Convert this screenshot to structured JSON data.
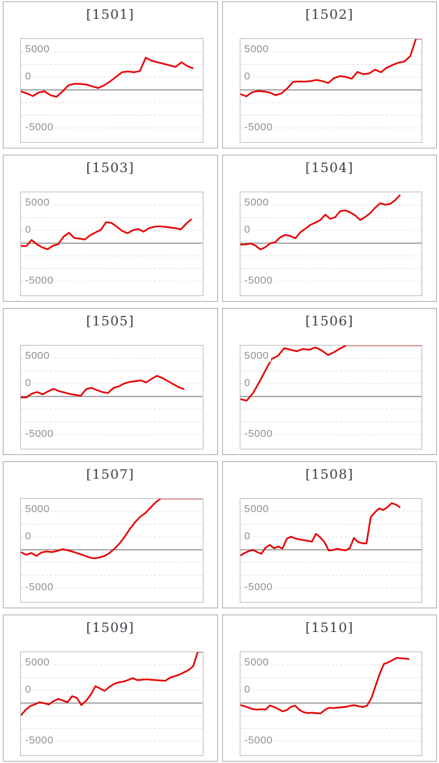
{
  "axis": {
    "y_tick_labels": [
      "5000",
      "0",
      "-5000"
    ],
    "y_tick_values": [
      5000,
      0,
      -5000
    ],
    "y_visible_range": [
      -6640,
      6640
    ],
    "gridline_interval": 1660,
    "grid": "dashed-horizontal",
    "zero_line": "solid"
  },
  "style_colors": {
    "line": "#e60000",
    "grid_dashed": "#dcdcdc",
    "zero_line": "#8f8f8f",
    "tick_label": "#8e8e96",
    "title": "#3d3d46",
    "cell_border": "#a7a7a7",
    "plot_border": "#bcbcbc",
    "background": "#ffffff"
  },
  "chart_data": [
    {
      "type": "line",
      "title": "[1501]",
      "ylim": [
        -6640,
        6640
      ],
      "legend": "none",
      "x_end_fraction": 0.95,
      "series": [
        {
          "name": "cumulative-payout",
          "values": [
            -200,
            -450,
            -800,
            -350,
            -200,
            -700,
            -900,
            -200,
            600,
            800,
            780,
            700,
            450,
            250,
            600,
            1100,
            1700,
            2300,
            2400,
            2300,
            2450,
            4200,
            3800,
            3600,
            3400,
            3200,
            3000,
            3600,
            3100,
            2800
          ]
        }
      ]
    },
    {
      "type": "line",
      "title": "[1502]",
      "ylim": [
        -6640,
        6640
      ],
      "legend": "none",
      "x_end_fraction": 1.0,
      "series": [
        {
          "name": "cumulative-payout",
          "values": [
            -550,
            -850,
            -300,
            -150,
            -200,
            -350,
            -700,
            -450,
            200,
            1050,
            1100,
            1080,
            1150,
            1300,
            1150,
            900,
            1550,
            1800,
            1700,
            1450,
            2350,
            2050,
            2150,
            2650,
            2300,
            2900,
            3250,
            3550,
            3700,
            4400,
            6700,
            6700
          ]
        }
      ]
    },
    {
      "type": "line",
      "title": "[1503]",
      "ylim": [
        -6640,
        6640
      ],
      "legend": "none",
      "x_end_fraction": 0.94,
      "series": [
        {
          "name": "cumulative-payout",
          "values": [
            -350,
            -380,
            420,
            -150,
            -550,
            -800,
            -350,
            -120,
            850,
            1350,
            700,
            580,
            480,
            1050,
            1400,
            1750,
            2750,
            2650,
            2150,
            1600,
            1300,
            1700,
            1850,
            1500,
            1950,
            2150,
            2200,
            2150,
            2050,
            1950,
            1800,
            2550,
            3150
          ]
        }
      ]
    },
    {
      "type": "line",
      "title": "[1504]",
      "ylim": [
        -6640,
        6640
      ],
      "legend": "none",
      "x_end_fraction": 0.88,
      "series": [
        {
          "name": "cumulative-payout",
          "values": [
            -180,
            -160,
            -40,
            -300,
            -820,
            -520,
            -20,
            140,
            780,
            1080,
            940,
            640,
            1420,
            1880,
            2380,
            2680,
            3020,
            3720,
            3180,
            3400,
            4180,
            4280,
            4020,
            3620,
            3020,
            3420,
            3920,
            4620,
            5220,
            5020,
            5120,
            5620,
            6300
          ]
        }
      ]
    },
    {
      "type": "line",
      "title": "[1505]",
      "ylim": [
        -6640,
        6640
      ],
      "legend": "none",
      "x_end_fraction": 0.9,
      "series": [
        {
          "name": "cumulative-payout",
          "values": [
            -120,
            -120,
            360,
            580,
            270,
            670,
            1000,
            700,
            515,
            330,
            210,
            90,
            970,
            1120,
            820,
            575,
            455,
            1120,
            1330,
            1700,
            1900,
            2000,
            2100,
            1850,
            2300,
            2700,
            2400,
            2000,
            1600,
            1200,
            950
          ]
        }
      ]
    },
    {
      "type": "line",
      "title": "[1506]",
      "ylim": [
        -6640,
        6640
      ],
      "legend": "none",
      "x_end_fraction": 1.0,
      "series": [
        {
          "name": "cumulative-payout",
          "values": [
            -350,
            -550,
            420,
            1850,
            3400,
            4900,
            5300,
            6300,
            6100,
            5900,
            6200,
            6100,
            6400,
            6000,
            5400,
            5800,
            6300,
            6700,
            6700,
            6700,
            6700,
            6700,
            6700,
            6700,
            6700,
            6700,
            6700,
            6700,
            6700,
            6700
          ]
        }
      ]
    },
    {
      "type": "line",
      "title": "[1507]",
      "ylim": [
        -6640,
        6640
      ],
      "legend": "none",
      "x_end_fraction": 1.0,
      "series": [
        {
          "name": "cumulative-payout",
          "values": [
            -300,
            -650,
            -420,
            -800,
            -350,
            -220,
            -300,
            -150,
            60,
            -60,
            -250,
            -480,
            -700,
            -950,
            -1120,
            -1020,
            -850,
            -450,
            100,
            800,
            1700,
            2700,
            3600,
            4300,
            4800,
            5500,
            6200,
            6700,
            6700,
            6700,
            6700,
            6700,
            6700,
            6700,
            6700,
            6700
          ]
        }
      ]
    },
    {
      "type": "line",
      "title": "[1508]",
      "ylim": [
        -6640,
        6640
      ],
      "legend": "none",
      "x_end_fraction": 0.88,
      "series": [
        {
          "name": "cumulative-payout",
          "values": [
            -750,
            -420,
            -160,
            -20,
            -300,
            -520,
            280,
            640,
            200,
            420,
            160,
            1400,
            1720,
            1480,
            1350,
            1260,
            1160,
            1060,
            2080,
            1600,
            1000,
            -80,
            -40,
            120,
            20,
            -80,
            200,
            1540,
            1000,
            860,
            820,
            4280,
            4880,
            5400,
            5180,
            5580,
            6080,
            5880,
            5520
          ]
        }
      ]
    },
    {
      "type": "line",
      "title": "[1509]",
      "ylim": [
        -6640,
        6640
      ],
      "legend": "none",
      "x_end_fraction": 1.0,
      "series": [
        {
          "name": "cumulative-payout",
          "values": [
            -1600,
            -900,
            -400,
            -150,
            100,
            -20,
            -180,
            250,
            550,
            350,
            100,
            900,
            700,
            -250,
            300,
            1100,
            2200,
            1900,
            1600,
            2100,
            2500,
            2700,
            2800,
            3000,
            3250,
            3000,
            3050,
            3100,
            3050,
            3000,
            2950,
            2900,
            3300,
            3500,
            3700,
            4000,
            4300,
            4800,
            6700,
            6700
          ]
        }
      ]
    },
    {
      "type": "line",
      "title": "[1510]",
      "ylim": [
        -6640,
        6640
      ],
      "legend": "none",
      "x_end_fraction": 0.93,
      "series": [
        {
          "name": "cumulative-payout",
          "values": [
            -250,
            -420,
            -620,
            -800,
            -850,
            -800,
            -850,
            -320,
            -520,
            -780,
            -1080,
            -900,
            -480,
            -350,
            -900,
            -1200,
            -1300,
            -1250,
            -1320,
            -1350,
            -900,
            -620,
            -650,
            -600,
            -550,
            -500,
            -350,
            -280,
            -420,
            -520,
            -350,
            600,
            2200,
            3800,
            5100,
            5300,
            5600,
            5900,
            5850,
            5800,
            5750
          ]
        }
      ]
    }
  ]
}
